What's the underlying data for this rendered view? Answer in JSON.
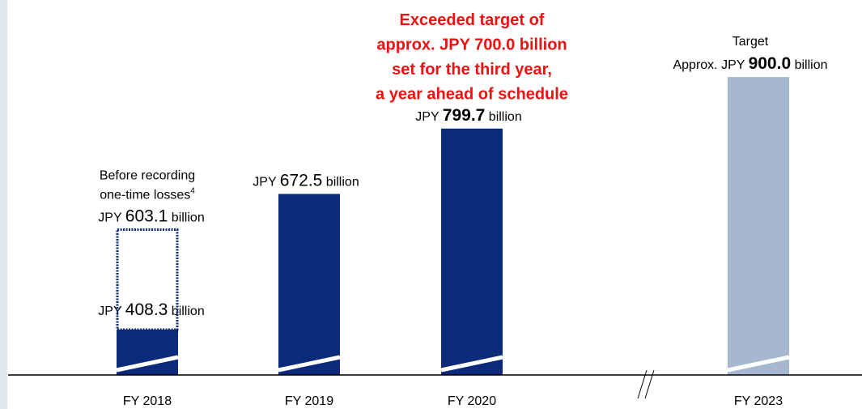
{
  "chart_data": {
    "type": "bar",
    "categories": [
      "FY 2018",
      "FY 2019",
      "FY 2020",
      "FY 2023"
    ],
    "values": [
      408.3,
      672.5,
      799.7,
      900.0
    ],
    "value_labels": [
      "408.3",
      "672.5",
      "799.7",
      "900.0"
    ],
    "colors": [
      "#0c2a7b",
      "#0c2a7b",
      "#0c2a7b",
      "#a5b8cf"
    ],
    "ylim": [
      320,
      1050
    ],
    "axis_break": true,
    "unit_prefix": "JPY",
    "unit_suffix": "billion",
    "target_label": "Target",
    "target_prefix": "Approx.",
    "before_losses": {
      "lines": [
        "Before recording",
        "one-time losses"
      ],
      "footnote": "4",
      "value": 603.1
    },
    "annotation": {
      "lines": [
        "Exceeded target of",
        "approx. JPY 700.0 billion",
        "set for the third year,",
        "a year ahead of schedule"
      ],
      "color": "#ee1111"
    }
  }
}
